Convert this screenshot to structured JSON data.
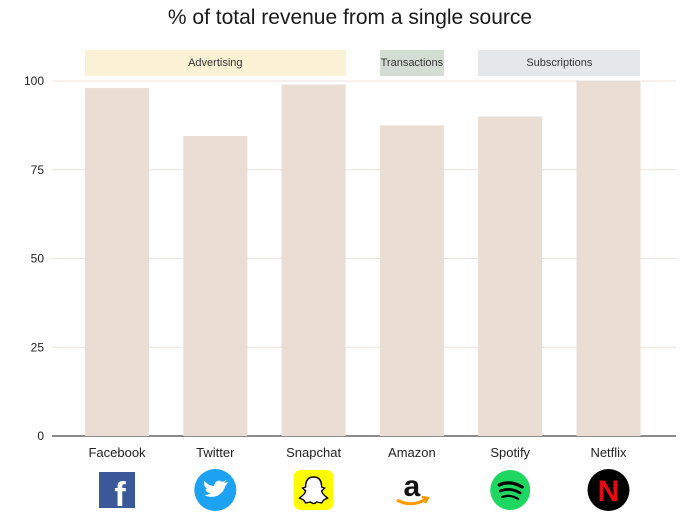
{
  "chart_data": {
    "type": "bar",
    "title": "% of total revenue from a single source",
    "categories": [
      "Facebook",
      "Twitter",
      "Snapchat",
      "Amazon",
      "Spotify",
      "Netflix"
    ],
    "values": [
      98,
      84.5,
      99,
      87.5,
      90,
      100
    ],
    "ylim": [
      0,
      100
    ],
    "yticks": [
      0,
      25,
      50,
      75,
      100
    ],
    "grid": true,
    "bar_color": "#e9ddd4",
    "groups": [
      {
        "label": "Advertising",
        "from": 0,
        "to": 2,
        "color": "#fbf1d4"
      },
      {
        "label": "Transactions",
        "from": 3,
        "to": 3,
        "color": "#d3ddd3"
      },
      {
        "label": "Subscriptions",
        "from": 4,
        "to": 5,
        "color": "#e6e7e8"
      }
    ],
    "logos": [
      {
        "name": "facebook-logo-icon",
        "color": "#3b5998"
      },
      {
        "name": "twitter-logo-icon",
        "color": "#1da1f2"
      },
      {
        "name": "snapchat-logo-icon",
        "color": "#fffc00"
      },
      {
        "name": "amazon-logo-icon",
        "color": "#ff9900"
      },
      {
        "name": "spotify-logo-icon",
        "color": "#1ed760"
      },
      {
        "name": "netflix-logo-icon",
        "color": "#e50914"
      }
    ]
  }
}
